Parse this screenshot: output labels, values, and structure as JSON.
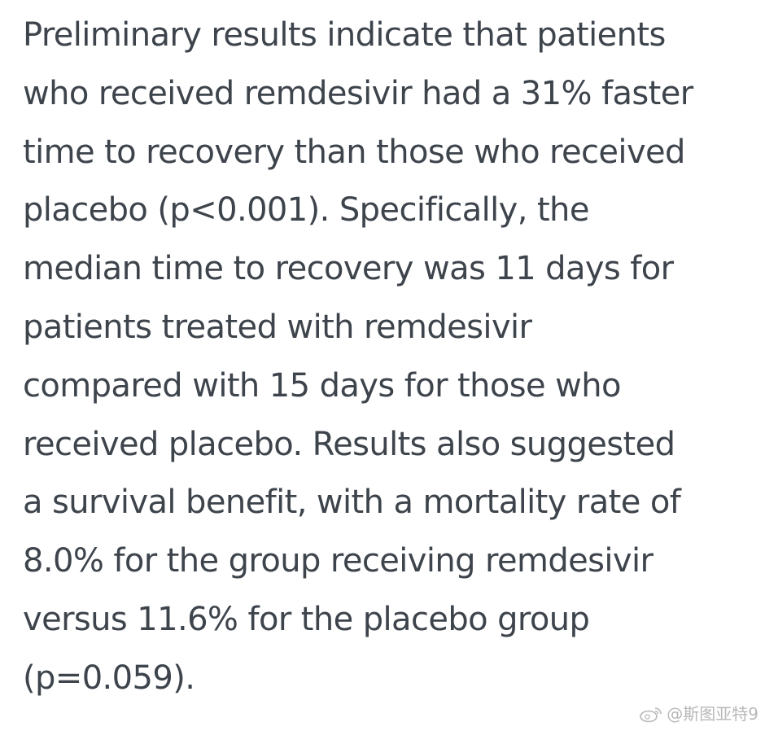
{
  "article": {
    "paragraph": "Preliminary results indicate that patients\nwho received remdesivir had a 31% faster\ntime to recovery than those who received\nplacebo (p<0.001). Specifically, the\nmedian time to recovery was 11 days for\npatients treated with remdesivir\ncompared with 15 days for those who\nreceived placebo. Results also suggested\na survival benefit, with a mortality rate of\n8.0% for the group receiving remdesivir\nversus 11.6% for the placebo group\n(p=0.059)."
  },
  "watermark": {
    "icon": "weibo-logo-icon",
    "text": "@斯图亚特9"
  }
}
